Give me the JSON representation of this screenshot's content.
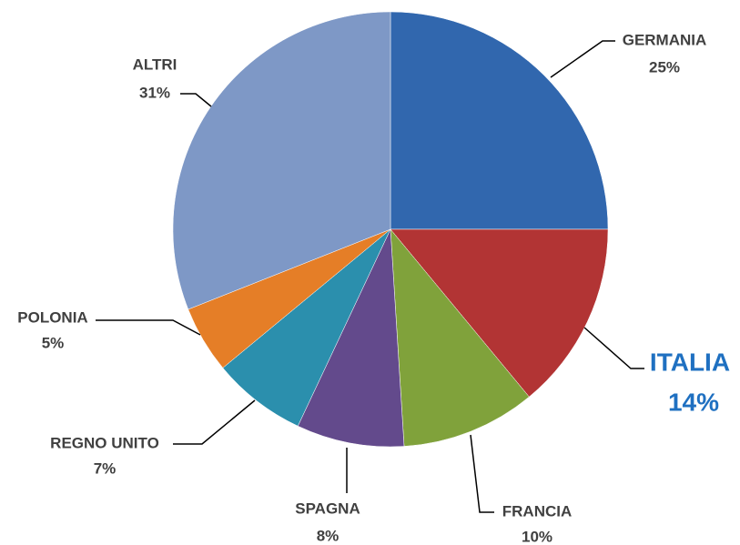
{
  "chart_data": {
    "type": "pie",
    "categories": [
      "GERMANIA",
      "ITALIA",
      "FRANCIA",
      "SPAGNA",
      "REGNO UNITO",
      "POLONIA",
      "ALTRI"
    ],
    "values": [
      25,
      14,
      10,
      8,
      7,
      5,
      31
    ],
    "value_labels": [
      "25%",
      "14%",
      "10%",
      "8%",
      "7%",
      "5%",
      "31%"
    ],
    "colors": [
      "#3167ae",
      "#b23434",
      "#80a23b",
      "#634a8c",
      "#2b8fad",
      "#e57e27",
      "#7e98c6"
    ],
    "highlight_color": "#1f70c1"
  }
}
